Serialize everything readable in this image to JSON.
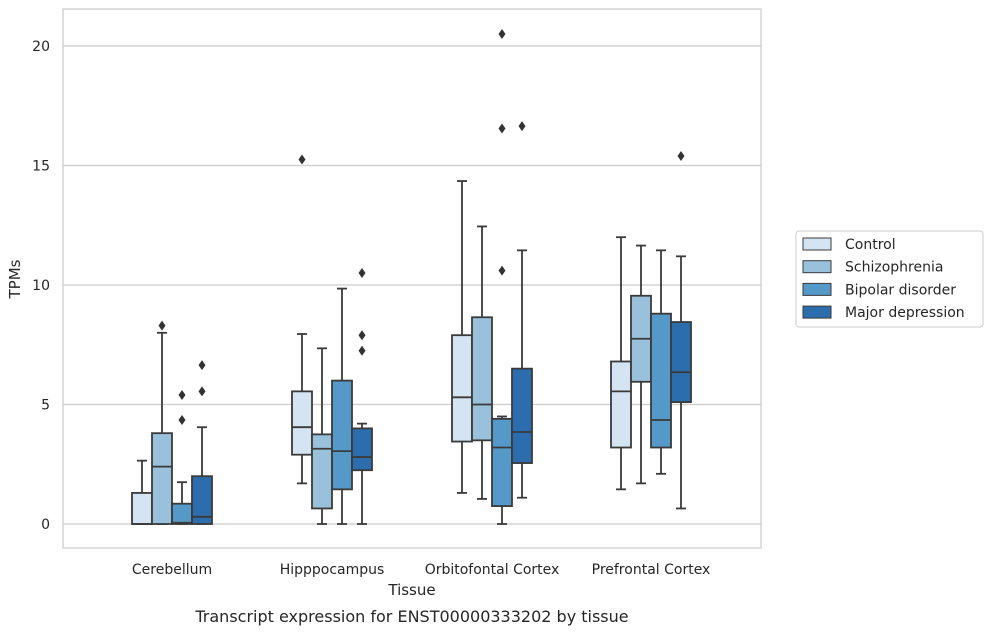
{
  "chart_data": {
    "type": "box",
    "xlabel": "Tissue",
    "ylabel": "TPMs",
    "caption": "Transcript expression for ENST00000333202 by tissue",
    "ylim": [
      -1,
      21.5
    ],
    "yticks": [
      0,
      5,
      10,
      15,
      20
    ],
    "grid": "horizontal",
    "legend_placement": "right",
    "categories": [
      "Cerebellum",
      "Hipppocampus",
      "Orbitofontal Cortex",
      "Prefrontal Cortex"
    ],
    "series": [
      {
        "name": "Control",
        "color": "#d5e4f2",
        "boxes": [
          {
            "whislo": 0,
            "q1": 0,
            "med": 0,
            "q3": 1.3,
            "whishi": 2.65,
            "fliers": []
          },
          {
            "whislo": 1.7,
            "q1": 2.9,
            "med": 4.05,
            "q3": 5.55,
            "whishi": 7.95,
            "fliers": [
              15.25
            ]
          },
          {
            "whislo": 1.3,
            "q1": 3.45,
            "med": 5.3,
            "q3": 7.9,
            "whishi": 14.35,
            "fliers": []
          },
          {
            "whislo": 1.45,
            "q1": 3.2,
            "med": 5.55,
            "q3": 6.8,
            "whishi": 12.0,
            "fliers": []
          }
        ]
      },
      {
        "name": "Schizophrenia",
        "color": "#99c1dc",
        "boxes": [
          {
            "whislo": 0,
            "q1": 0,
            "med": 2.4,
            "q3": 3.8,
            "whishi": 8.0,
            "fliers": [
              8.3
            ]
          },
          {
            "whislo": 0,
            "q1": 0.65,
            "med": 3.15,
            "q3": 3.75,
            "whishi": 7.35,
            "fliers": []
          },
          {
            "whislo": 1.05,
            "q1": 3.5,
            "med": 5.0,
            "q3": 8.65,
            "whishi": 12.45,
            "fliers": []
          },
          {
            "whislo": 1.7,
            "q1": 5.95,
            "med": 7.75,
            "q3": 9.55,
            "whishi": 11.65,
            "fliers": []
          }
        ]
      },
      {
        "name": "Bipolar disorder",
        "color": "#5599c8",
        "boxes": [
          {
            "whislo": 0,
            "q1": 0,
            "med": 0.05,
            "q3": 0.85,
            "whishi": 1.75,
            "fliers": [
              4.35,
              5.4
            ]
          },
          {
            "whislo": 0,
            "q1": 1.45,
            "med": 3.05,
            "q3": 6.0,
            "whishi": 9.85,
            "fliers": []
          },
          {
            "whislo": 0,
            "q1": 0.75,
            "med": 3.2,
            "q3": 4.4,
            "whishi": 4.5,
            "fliers": [
              10.6,
              16.55,
              20.5
            ]
          },
          {
            "whislo": 2.1,
            "q1": 3.2,
            "med": 4.35,
            "q3": 8.8,
            "whishi": 11.45,
            "fliers": []
          }
        ]
      },
      {
        "name": "Major depression",
        "color": "#2c6dad",
        "boxes": [
          {
            "whislo": 0,
            "q1": 0,
            "med": 0.3,
            "q3": 2.0,
            "whishi": 4.05,
            "fliers": [
              5.55,
              6.65
            ]
          },
          {
            "whislo": 0,
            "q1": 2.25,
            "med": 2.8,
            "q3": 4.0,
            "whishi": 4.2,
            "fliers": [
              7.25,
              7.9,
              10.5
            ]
          },
          {
            "whislo": 1.1,
            "q1": 2.55,
            "med": 3.85,
            "q3": 6.5,
            "whishi": 11.45,
            "fliers": [
              16.65
            ]
          },
          {
            "whislo": 0.65,
            "q1": 5.1,
            "med": 6.35,
            "q3": 8.45,
            "whishi": 11.2,
            "fliers": [
              15.4
            ]
          }
        ]
      }
    ]
  }
}
